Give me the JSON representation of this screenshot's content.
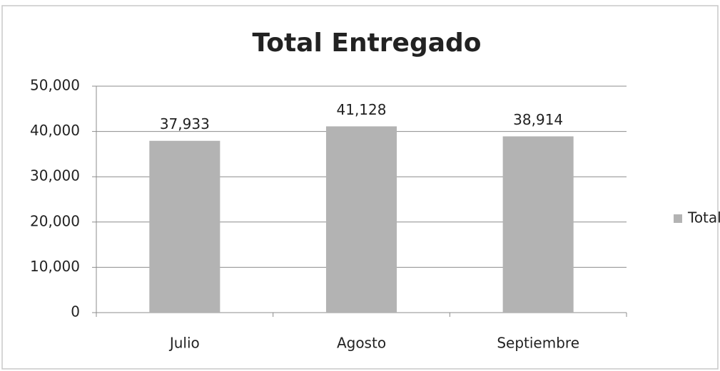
{
  "chart_data": {
    "type": "bar",
    "title": "Total Entregado",
    "categories": [
      "Julio",
      "Agosto",
      "Septiembre"
    ],
    "series": [
      {
        "name": "Total",
        "color": "#b3b3b3",
        "values": [
          37933,
          41128,
          38914
        ],
        "value_labels": [
          "37,933",
          "41,128",
          "38,914"
        ]
      }
    ],
    "ylim": [
      0,
      50000
    ],
    "yticks": [
      0,
      {
        "value": 10000,
        "label": "10,000"
      },
      {
        "value": 20000,
        "label": "20,000"
      },
      {
        "value": 30000,
        "label": "30,000"
      },
      {
        "value": 40000,
        "label": "40,000"
      },
      {
        "value": 50000,
        "label": "50,000"
      }
    ],
    "grid": true,
    "legend": "right"
  }
}
